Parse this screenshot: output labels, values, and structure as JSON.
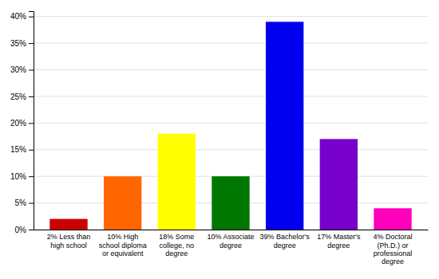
{
  "chart_data": {
    "type": "bar",
    "categories": [
      "2% Less than\nhigh school",
      "10% High\nschool diploma\nor equivalent",
      "18% Some\ncollege, no\ndegree",
      "10% Associate\ndegree",
      "39% Bachelor's\ndegree",
      "17% Master's\ndegree",
      "4% Doctoral\n(Ph.D.) or\nprofessional\ndegree"
    ],
    "values": [
      2,
      10,
      18,
      10,
      39,
      17,
      4
    ],
    "colors": [
      "#cc0000",
      "#ff6600",
      "#ffff00",
      "#007700",
      "#0000ee",
      "#7700cc",
      "#ff00bb"
    ],
    "ylim": [
      0,
      41
    ],
    "yticks": [
      {
        "value": 0,
        "label": "0%"
      },
      {
        "value": 5,
        "label": "5%"
      },
      {
        "value": 10,
        "label": "10%"
      },
      {
        "value": 15,
        "label": "15%"
      },
      {
        "value": 20,
        "label": "20%"
      },
      {
        "value": 25,
        "label": "25%"
      },
      {
        "value": 30,
        "label": "30%"
      },
      {
        "value": 35,
        "label": "35%"
      },
      {
        "value": 40,
        "label": "40%"
      }
    ],
    "grid": true
  }
}
